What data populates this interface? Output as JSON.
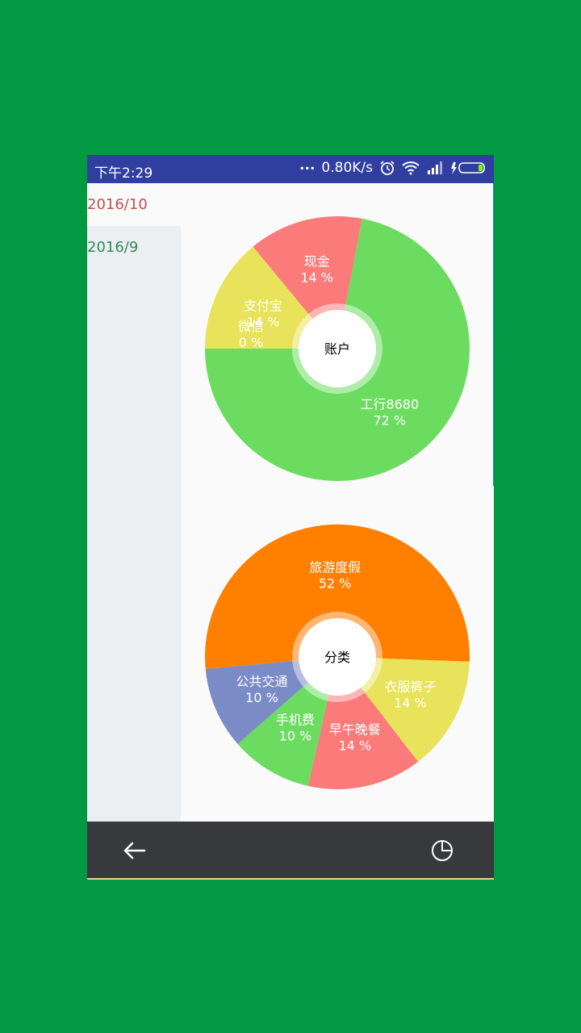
{
  "status_bar": {
    "time": "下午2:29",
    "dots": "...",
    "speed": "0.80K/s"
  },
  "sidebar": {
    "months": [
      "2016/10",
      "2016/9"
    ]
  },
  "colors": {
    "outer_bg": "#019a43",
    "status_bar": "#303f9f",
    "nav_bar": "#37393d",
    "month_selected": "#c0504d",
    "month_other": "#2e8b57"
  },
  "chart_data": [
    {
      "type": "pie",
      "center_label": "账户",
      "slices": [
        {
          "label": "工行8680",
          "percent_text": "72 %",
          "value": 72,
          "color": "#6cdc60"
        },
        {
          "label": "微信",
          "percent_text": "0 %",
          "value": 0,
          "color": "#6cdc60"
        },
        {
          "label": "支付宝",
          "percent_text": "14 %",
          "value": 14,
          "color": "#e8e35a"
        },
        {
          "label": "现金",
          "percent_text": "14 %",
          "value": 14,
          "color": "#fb7a7a"
        }
      ]
    },
    {
      "type": "pie",
      "center_label": "分类",
      "slices": [
        {
          "label": "衣服裤子",
          "percent_text": "14 %",
          "value": 14,
          "color": "#e8e35a"
        },
        {
          "label": "早午晚餐",
          "percent_text": "14 %",
          "value": 14,
          "color": "#fb7a7a"
        },
        {
          "label": "手机费",
          "percent_text": "10 %",
          "value": 10,
          "color": "#6cdc60"
        },
        {
          "label": "公共交通",
          "percent_text": "10 %",
          "value": 10,
          "color": "#7b8bc6"
        },
        {
          "label": "旅游度假",
          "percent_text": "52 %",
          "value": 52,
          "color": "#ff7f00"
        }
      ]
    }
  ],
  "nav_bar": {
    "back_icon": "arrow-left-icon",
    "chart_icon": "pie-chart-icon"
  }
}
